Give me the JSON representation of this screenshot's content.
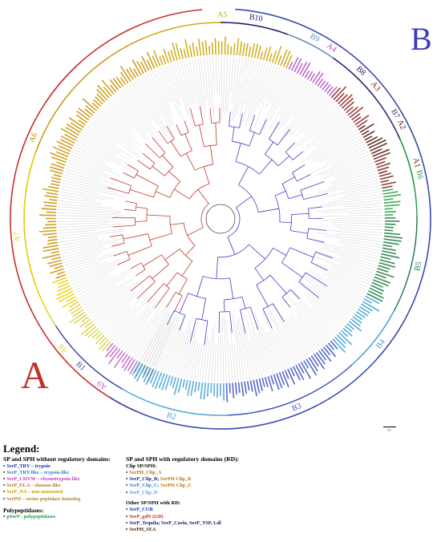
{
  "figure": {
    "big_labels": {
      "A": "A",
      "B": "B"
    },
    "clades_A": [
      {
        "id": "A1",
        "label": "A1",
        "color": "#7a1a1a",
        "a0": -22,
        "a1": -10
      },
      {
        "id": "A2",
        "label": "A2",
        "color": "#4a1008",
        "a0": -33,
        "a1": -22
      },
      {
        "id": "A3",
        "label": "A3",
        "color": "#8b1a1a",
        "a0": -48,
        "a1": -33
      },
      {
        "id": "A4",
        "label": "A4",
        "color": "#b04fc0",
        "a0": -66,
        "a1": -48
      },
      {
        "id": "A5",
        "label": "A5",
        "color": "#c8a400",
        "a0": -113,
        "a1": -66
      },
      {
        "id": "A6",
        "label": "A6",
        "color": "#c89000",
        "a0": -200,
        "a1": -113
      },
      {
        "id": "A7",
        "label": "A7",
        "color": "#e8d000",
        "a0": -210,
        "a1": -160
      },
      {
        "id": "A8",
        "label": "A8",
        "color": "#d8d040",
        "a0": -229,
        "a1": -210
      },
      {
        "id": "A9",
        "label": "A9",
        "color": "#c060c0",
        "a0": -240,
        "a1": -229
      }
    ],
    "clades_B": [
      {
        "id": "B1",
        "label": "B1",
        "color": "#3548b0",
        "a0": 120,
        "a1": 147
      },
      {
        "id": "B2",
        "label": "B2",
        "color": "#40a0d0",
        "a0": 88,
        "a1": 120
      },
      {
        "id": "B3",
        "label": "B3",
        "color": "#3a4fc0",
        "a0": 48,
        "a1": 88
      },
      {
        "id": "B4",
        "label": "B4",
        "color": "#3aa0d0",
        "a0": 28,
        "a1": 48
      },
      {
        "id": "B5",
        "label": "B5",
        "color": "#1a7a40",
        "a0": -1,
        "a1": 28
      },
      {
        "id": "B6",
        "label": "B6",
        "color": "#20a040",
        "a0": -24,
        "a1": -1
      },
      {
        "id": "B7",
        "label": "B7",
        "color": "#2a2a80",
        "a0": -38,
        "a1": -24
      },
      {
        "id": "B8",
        "label": "B8",
        "color": "#1a1a60",
        "a0": -55,
        "a1": -38
      },
      {
        "id": "B9",
        "label": "B9",
        "color": "#5a90c0",
        "a0": -70,
        "a1": -55
      },
      {
        "id": "B10",
        "label": "B10",
        "color": "#1a1a70",
        "a0": -90,
        "a1": -70
      }
    ],
    "scale_label": "0.5",
    "colors": {
      "clade_A_branch": "#c0392b",
      "clade_B_branch": "#4a3ac0",
      "outer_A": "#c8302e",
      "outer_B": "#3a4ab0"
    }
  },
  "legend": {
    "title": "Legend:",
    "col1": {
      "heading": "SP and SPH without regulatory domains:",
      "items": [
        {
          "text": "SerP_TRY – trypsin",
          "color": "#1a2fb0"
        },
        {
          "text": "SerP_TRY-like – trypsin-like",
          "color": "#3080d0"
        },
        {
          "text": "SerP_CHYM – chymotrypsin-like",
          "color": "#c040c0"
        },
        {
          "text": "SerP_ELA – elastase-like",
          "color": "#c07018"
        },
        {
          "text": "SerP_NA – non-annotated",
          "color": "#c8a000"
        },
        {
          "text": "SerPH – serine peptidase homolog",
          "color": "#b88820"
        }
      ],
      "heading2": "Polypeptidases:",
      "items2": [
        {
          "text": "pSerP - polypeptidases",
          "color": "#18a040"
        }
      ]
    },
    "col2": {
      "heading": "SP and SPH with regulatory domains (RD):",
      "sub1": "Clip SP/SPH:",
      "clip_items": [
        {
          "parts": [
            {
              "text": "SerPH_Clip_A",
              "color": "#c07018"
            }
          ]
        },
        {
          "parts": [
            {
              "text": "SerP_Clip_B;",
              "color": "#1a2a80"
            },
            {
              "text": " SerPH Clip_B",
              "color": "#c07018"
            }
          ]
        },
        {
          "parts": [
            {
              "text": "SerP_Clip_C;",
              "color": "#3080d0"
            },
            {
              "text": " SerPH Clip_C",
              "color": "#c07018"
            }
          ]
        },
        {
          "parts": [
            {
              "text": "SerP_Clip_D",
              "color": "#6aa0e0"
            }
          ]
        }
      ],
      "sub2": "Other SP/SPH with RD:",
      "other_items": [
        {
          "parts": [
            {
              "text": "SerP_CUB",
              "color": "#1a2fb0"
            }
          ]
        },
        {
          "parts": [
            {
              "text": "SerP_gdN (GD)",
              "color": "#c0302a"
            }
          ]
        },
        {
          "parts": [
            {
              "text": "SerP_Tequila; SerP_Corin, SerP_TSP, Ldl",
              "color": "#1a1a60"
            }
          ]
        },
        {
          "parts": [
            {
              "text": "SerPH_SEA",
              "color": "#4a2a10"
            }
          ]
        }
      ]
    }
  }
}
